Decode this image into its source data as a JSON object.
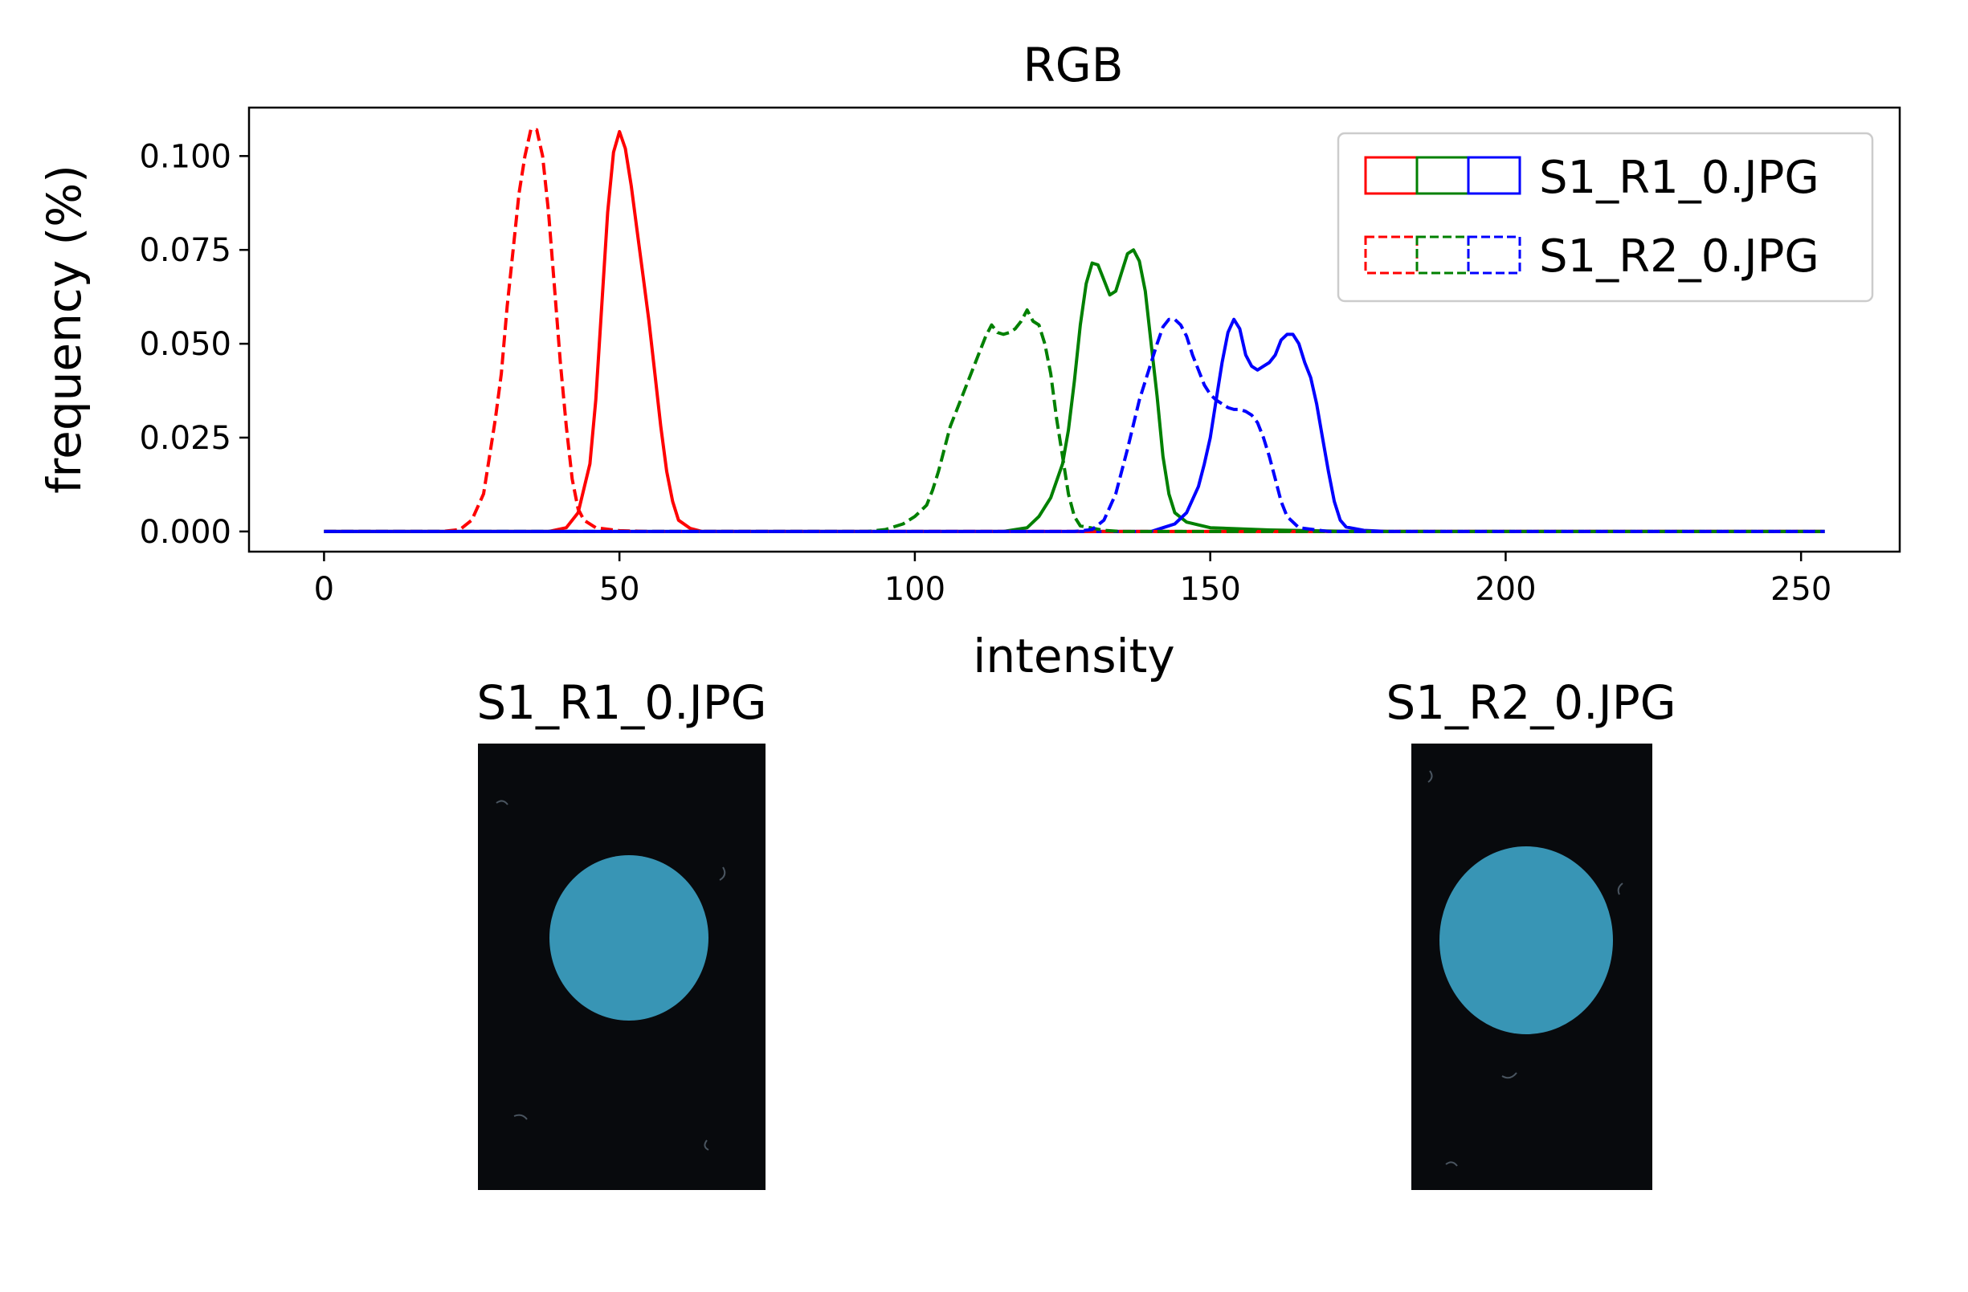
{
  "chart_data": {
    "type": "line",
    "title": "RGB",
    "xlabel": "intensity",
    "ylabel": "frequency (%)",
    "xlim": [
      -12.7,
      266.7
    ],
    "ylim": [
      -0.005375,
      0.1129
    ],
    "x_ticks": [
      0,
      50,
      100,
      150,
      200,
      250
    ],
    "x_tick_labels": [
      "0",
      "50",
      "100",
      "150",
      "200",
      "250"
    ],
    "y_ticks": [
      0.0,
      0.025,
      0.05,
      0.075,
      0.1
    ],
    "y_tick_labels": [
      "0.000",
      "0.025",
      "0.050",
      "0.075",
      "0.100"
    ],
    "grid": false,
    "legend_position": "upper right",
    "legend": [
      {
        "label": "S1_R1_0.JPG",
        "style": "solid",
        "colors": [
          "#ff0000",
          "#008000",
          "#0000ff"
        ]
      },
      {
        "label": "S1_R2_0.JPG",
        "style": "dashed",
        "colors": [
          "#ff0000",
          "#008000",
          "#0000ff"
        ]
      }
    ],
    "series": [
      {
        "file": "S1_R1_0.JPG",
        "channel": "R",
        "color": "#ff0000",
        "style": "solid",
        "points": [
          [
            0,
            0
          ],
          [
            38,
            0
          ],
          [
            41,
            0.001
          ],
          [
            43,
            0.005
          ],
          [
            45,
            0.018
          ],
          [
            46,
            0.035
          ],
          [
            47,
            0.06
          ],
          [
            48,
            0.085
          ],
          [
            49,
            0.101
          ],
          [
            50,
            0.1065
          ],
          [
            51,
            0.102
          ],
          [
            52,
            0.092
          ],
          [
            53,
            0.08
          ],
          [
            54,
            0.068
          ],
          [
            55,
            0.056
          ],
          [
            56,
            0.042
          ],
          [
            57,
            0.028
          ],
          [
            58,
            0.016
          ],
          [
            59,
            0.008
          ],
          [
            60,
            0.003
          ],
          [
            62,
            0.0008
          ],
          [
            64,
            0
          ],
          [
            254,
            0
          ]
        ]
      },
      {
        "file": "S1_R1_0.JPG",
        "channel": "G",
        "color": "#008000",
        "style": "solid",
        "points": [
          [
            0,
            0
          ],
          [
            115,
            0
          ],
          [
            119,
            0.001
          ],
          [
            121,
            0.004
          ],
          [
            123,
            0.009
          ],
          [
            125,
            0.018
          ],
          [
            126,
            0.027
          ],
          [
            127,
            0.04
          ],
          [
            128,
            0.055
          ],
          [
            129,
            0.066
          ],
          [
            130,
            0.0715
          ],
          [
            131,
            0.071
          ],
          [
            132,
            0.067
          ],
          [
            133,
            0.063
          ],
          [
            134,
            0.064
          ],
          [
            135,
            0.069
          ],
          [
            136,
            0.074
          ],
          [
            137,
            0.075
          ],
          [
            138,
            0.072
          ],
          [
            139,
            0.064
          ],
          [
            140,
            0.05
          ],
          [
            141,
            0.036
          ],
          [
            142,
            0.02
          ],
          [
            143,
            0.01
          ],
          [
            144,
            0.005
          ],
          [
            146,
            0.0025
          ],
          [
            150,
            0.001
          ],
          [
            160,
            0.0004
          ],
          [
            175,
            0
          ],
          [
            254,
            0
          ]
        ]
      },
      {
        "file": "S1_R1_0.JPG",
        "channel": "B",
        "color": "#0000ff",
        "style": "solid",
        "points": [
          [
            0,
            0
          ],
          [
            140,
            0
          ],
          [
            142,
            0.001
          ],
          [
            144,
            0.002
          ],
          [
            146,
            0.005
          ],
          [
            148,
            0.012
          ],
          [
            149,
            0.018
          ],
          [
            150,
            0.025
          ],
          [
            151,
            0.035
          ],
          [
            152,
            0.045
          ],
          [
            153,
            0.053
          ],
          [
            154,
            0.0565
          ],
          [
            155,
            0.054
          ],
          [
            156,
            0.047
          ],
          [
            157,
            0.044
          ],
          [
            158,
            0.043
          ],
          [
            159,
            0.044
          ],
          [
            160,
            0.045
          ],
          [
            161,
            0.047
          ],
          [
            162,
            0.051
          ],
          [
            163,
            0.0525
          ],
          [
            164,
            0.0525
          ],
          [
            165,
            0.05
          ],
          [
            166,
            0.045
          ],
          [
            167,
            0.041
          ],
          [
            168,
            0.034
          ],
          [
            169,
            0.025
          ],
          [
            170,
            0.016
          ],
          [
            171,
            0.008
          ],
          [
            172,
            0.003
          ],
          [
            173,
            0.0012
          ],
          [
            176,
            0.0003
          ],
          [
            180,
            0
          ],
          [
            254,
            0
          ]
        ]
      },
      {
        "file": "S1_R2_0.JPG",
        "channel": "R",
        "color": "#ff0000",
        "style": "dashed",
        "points": [
          [
            0,
            0
          ],
          [
            20,
            0
          ],
          [
            23,
            0.0005
          ],
          [
            25,
            0.003
          ],
          [
            27,
            0.01
          ],
          [
            28,
            0.02
          ],
          [
            29,
            0.03
          ],
          [
            30,
            0.042
          ],
          [
            31,
            0.06
          ],
          [
            32,
            0.075
          ],
          [
            33,
            0.09
          ],
          [
            34,
            0.1
          ],
          [
            35,
            0.107
          ],
          [
            36,
            0.107
          ],
          [
            37,
            0.1
          ],
          [
            38,
            0.085
          ],
          [
            39,
            0.065
          ],
          [
            40,
            0.045
          ],
          [
            41,
            0.028
          ],
          [
            42,
            0.014
          ],
          [
            43,
            0.006
          ],
          [
            44,
            0.003
          ],
          [
            46,
            0.001
          ],
          [
            50,
            0.0002
          ],
          [
            55,
            0
          ],
          [
            254,
            0
          ]
        ]
      },
      {
        "file": "S1_R2_0.JPG",
        "channel": "G",
        "color": "#008000",
        "style": "dashed",
        "points": [
          [
            0,
            0
          ],
          [
            92,
            0
          ],
          [
            95,
            0.0005
          ],
          [
            98,
            0.002
          ],
          [
            100,
            0.004
          ],
          [
            102,
            0.007
          ],
          [
            103,
            0.011
          ],
          [
            104,
            0.016
          ],
          [
            105,
            0.022
          ],
          [
            106,
            0.028
          ],
          [
            107,
            0.032
          ],
          [
            108,
            0.036
          ],
          [
            109,
            0.04
          ],
          [
            110,
            0.044
          ],
          [
            111,
            0.048
          ],
          [
            112,
            0.052
          ],
          [
            113,
            0.055
          ],
          [
            114,
            0.053
          ],
          [
            115,
            0.0525
          ],
          [
            116,
            0.053
          ],
          [
            117,
            0.054
          ],
          [
            118,
            0.056
          ],
          [
            119,
            0.059
          ],
          [
            120,
            0.056
          ],
          [
            121,
            0.055
          ],
          [
            122,
            0.05
          ],
          [
            123,
            0.042
          ],
          [
            124,
            0.03
          ],
          [
            125,
            0.02
          ],
          [
            126,
            0.01
          ],
          [
            127,
            0.004
          ],
          [
            128,
            0.0015
          ],
          [
            132,
            0.0003
          ],
          [
            135,
            0
          ],
          [
            254,
            0
          ]
        ]
      },
      {
        "file": "S1_R2_0.JPG",
        "channel": "B",
        "color": "#0000ff",
        "style": "dashed",
        "points": [
          [
            0,
            0
          ],
          [
            127,
            0
          ],
          [
            130,
            0.0005
          ],
          [
            132,
            0.003
          ],
          [
            134,
            0.01
          ],
          [
            136,
            0.022
          ],
          [
            138,
            0.035
          ],
          [
            140,
            0.045
          ],
          [
            141,
            0.05
          ],
          [
            142,
            0.0545
          ],
          [
            143,
            0.0565
          ],
          [
            144,
            0.0565
          ],
          [
            145,
            0.055
          ],
          [
            146,
            0.052
          ],
          [
            147,
            0.047
          ],
          [
            148,
            0.043
          ],
          [
            149,
            0.039
          ],
          [
            150,
            0.0365
          ],
          [
            151,
            0.035
          ],
          [
            152,
            0.034
          ],
          [
            153,
            0.033
          ],
          [
            154,
            0.0325
          ],
          [
            155,
            0.0325
          ],
          [
            156,
            0.032
          ],
          [
            157,
            0.031
          ],
          [
            158,
            0.029
          ],
          [
            159,
            0.025
          ],
          [
            160,
            0.02
          ],
          [
            161,
            0.014
          ],
          [
            162,
            0.008
          ],
          [
            163,
            0.004
          ],
          [
            165,
            0.001
          ],
          [
            170,
            0
          ],
          [
            254,
            0
          ]
        ]
      }
    ]
  },
  "panels": [
    {
      "title": "S1_R1_0.JPG",
      "background": "#080a0d",
      "disk_color": "#3895b5"
    },
    {
      "title": "S1_R2_0.JPG",
      "background": "#080a0d",
      "disk_color": "#3895b5"
    }
  ]
}
